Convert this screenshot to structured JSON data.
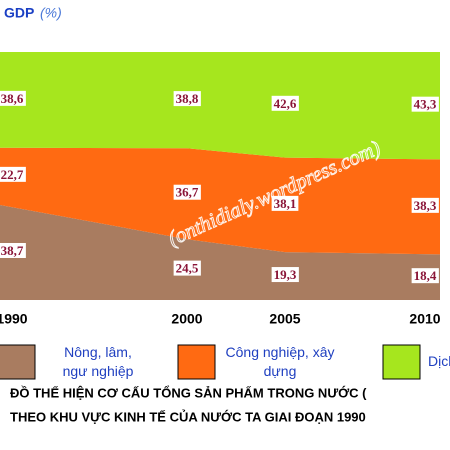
{
  "chart_data": {
    "type": "stacked_area",
    "y_label": "GDP",
    "y_unit": "(%)",
    "categories": [
      "1990",
      "2000",
      "2005",
      "2010"
    ],
    "series": [
      {
        "name": "Nông, lâm, ngư nghiệp",
        "color": "#a97c60",
        "values": [
          38.7,
          24.5,
          19.3,
          18.4
        ],
        "value_labels": [
          "38,7",
          "24,5",
          "19,3",
          "18,4"
        ]
      },
      {
        "name": "Công nghiệp, xây dựng",
        "color": "#ff6a12",
        "values": [
          22.7,
          36.7,
          38.1,
          38.3
        ],
        "value_labels": [
          "22,7",
          "36,7",
          "38,1",
          "38,3"
        ]
      },
      {
        "name": "Dịch vụ",
        "color": "#a6e61e",
        "values": [
          38.6,
          38.8,
          42.6,
          43.3
        ],
        "value_labels": [
          "38,6",
          "38,8",
          "42,6",
          "43,3"
        ]
      }
    ],
    "watermark": "(onthidialy.wordpress.com)",
    "caption": [
      "ĐỒ THỂ HIỆN CƠ CẤU TỔNG SẢN PHẨM TRONG NƯỚC (",
      "THEO KHU VỰC KINH TẾ CỦA NƯỚC TA GIAI ĐOẠN 1990"
    ]
  }
}
